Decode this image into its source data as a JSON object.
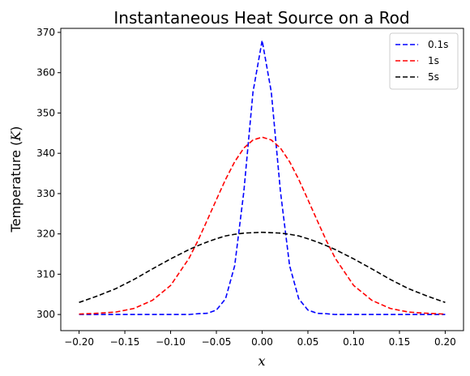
{
  "chart_data": {
    "type": "line",
    "title": "Instantaneous Heat Source on a Rod",
    "xlabel": "x",
    "ylabel": {
      "text": "Temperature (",
      "var": "K",
      "close": ")"
    },
    "xlim": [
      -0.22,
      0.22
    ],
    "ylim": [
      296,
      371
    ],
    "xticks": [
      -0.2,
      -0.15,
      -0.1,
      -0.05,
      0.0,
      0.05,
      0.1,
      0.15,
      0.2
    ],
    "xtick_labels": [
      "−0.20",
      "−0.15",
      "−0.10",
      "−0.05",
      "0.00",
      "0.05",
      "0.10",
      "0.15",
      "0.20"
    ],
    "yticks": [
      300,
      310,
      320,
      330,
      340,
      350,
      360,
      370
    ],
    "ytick_labels": [
      "300",
      "310",
      "320",
      "330",
      "340",
      "350",
      "360",
      "370"
    ],
    "grid": false,
    "legend_position": "top-right",
    "x": [
      -0.2,
      -0.18,
      -0.16,
      -0.14,
      -0.12,
      -0.1,
      -0.08,
      -0.07,
      -0.06,
      -0.05,
      -0.04,
      -0.03,
      -0.02,
      -0.01,
      0.0,
      0.01,
      0.02,
      0.03,
      0.04,
      0.05,
      0.06,
      0.07,
      0.08,
      0.1,
      0.12,
      0.14,
      0.16,
      0.18,
      0.2
    ],
    "series": [
      {
        "name": "0.1s",
        "color": "#0000ff",
        "values": [
          300.0,
          300.0,
          300.0,
          300.0,
          300.0,
          300.0,
          300.0,
          300.2,
          300.3,
          301.1,
          303.9,
          312.1,
          330.5,
          355.2,
          368.0,
          355.2,
          330.5,
          312.1,
          303.9,
          301.1,
          300.3,
          300.2,
          300.0,
          300.0,
          300.0,
          300.0,
          300.0,
          300.0,
          300.0
        ]
      },
      {
        "name": "1s",
        "color": "#ff0000",
        "values": [
          300.1,
          300.3,
          300.6,
          301.5,
          303.5,
          307.2,
          313.9,
          318.4,
          323.4,
          328.5,
          333.5,
          337.9,
          341.3,
          343.3,
          344.0,
          343.3,
          341.3,
          337.9,
          333.5,
          328.5,
          323.4,
          318.4,
          313.9,
          307.2,
          303.5,
          301.5,
          300.6,
          300.3,
          300.1
        ]
      },
      {
        "name": "5s",
        "color": "#000000",
        "values": [
          303.0,
          304.6,
          306.4,
          308.7,
          311.3,
          313.8,
          316.1,
          317.1,
          318.0,
          318.8,
          319.5,
          319.9,
          320.2,
          320.3,
          320.4,
          320.3,
          320.2,
          319.9,
          319.5,
          318.8,
          318.0,
          317.1,
          316.1,
          313.8,
          311.3,
          308.7,
          306.4,
          304.6,
          303.0
        ]
      }
    ]
  }
}
